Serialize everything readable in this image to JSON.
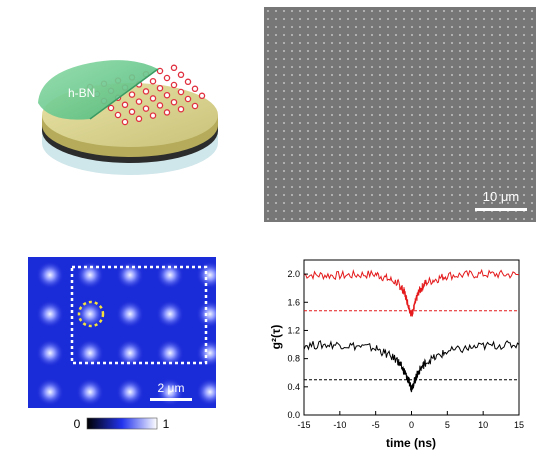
{
  "panel_a": {
    "label": "h-BN"
  },
  "panel_b": {
    "scale_label": "10 μm"
  },
  "panel_c": {
    "scale_label": "2 μm",
    "colorbar_min": "0",
    "colorbar_max": "1"
  },
  "chart_data": {
    "type": "line",
    "xlabel": "time (ns)",
    "ylabel": "g²(τ)",
    "xlim": [
      -15,
      15
    ],
    "ylim": [
      0.0,
      2.2
    ],
    "xticks": [
      "-15",
      "-10",
      "-5",
      "0",
      "5",
      "10",
      "15"
    ],
    "yticks": [
      "0.0",
      "0.4",
      "0.8",
      "1.2",
      "1.6",
      "2.0"
    ],
    "series": [
      {
        "color": "#e41a1c",
        "x": [
          -15,
          -10,
          -5,
          -2,
          -1,
          -0.5,
          0,
          0.5,
          1,
          2,
          5,
          10,
          15
        ],
        "values": [
          1.99,
          1.98,
          2.0,
          1.88,
          1.75,
          1.58,
          1.42,
          1.58,
          1.75,
          1.88,
          1.98,
          2.0,
          1.99
        ]
      },
      {
        "color": "#000000",
        "x": [
          -15,
          -10,
          -5,
          -2,
          -1,
          -0.5,
          0,
          0.5,
          1,
          2,
          5,
          10,
          15
        ],
        "values": [
          0.99,
          1.0,
          0.95,
          0.78,
          0.62,
          0.5,
          0.38,
          0.5,
          0.62,
          0.75,
          0.9,
          0.98,
          1.0
        ]
      }
    ],
    "reference_lines": [
      {
        "y": 1.48,
        "color": "#e41a1c",
        "style": "dashed"
      },
      {
        "y": 0.5,
        "color": "#000000",
        "style": "dashed"
      }
    ]
  }
}
